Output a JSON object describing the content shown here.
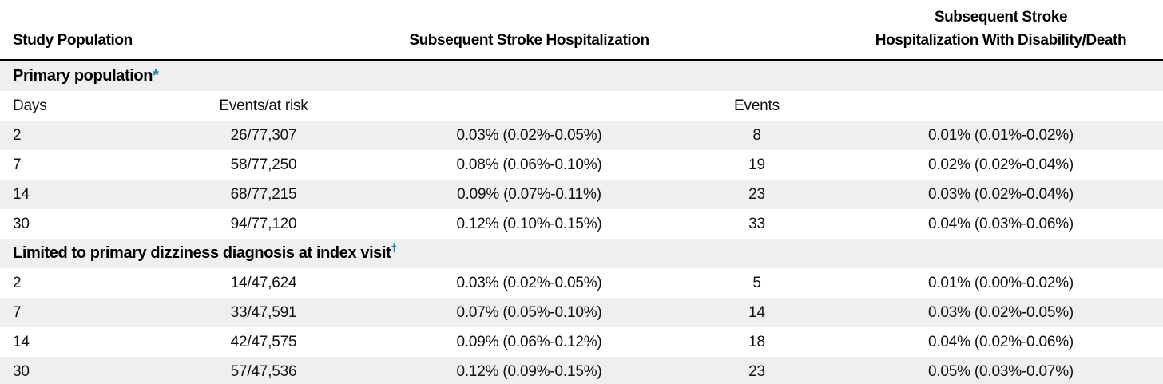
{
  "accent_color": "#1b7fb5",
  "stripe_color": "#efefef",
  "header": {
    "study_population": "Study Population",
    "stroke_hospitalization": "Subsequent Stroke Hospitalization",
    "stroke_disability_line1": "Subsequent Stroke",
    "stroke_disability_line2": "Hospitalization With Disability/Death"
  },
  "subheader": {
    "days": "Days",
    "events_at_risk": "Events/at risk",
    "events": "Events"
  },
  "sections": [
    {
      "title": "Primary population",
      "marker": "*",
      "rows": [
        {
          "days": "2",
          "events_at_risk": "26/77,307",
          "rate_ci": "0.03% (0.02%-0.05%)",
          "events": "8",
          "disability_rate_ci": "0.01% (0.01%-0.02%)"
        },
        {
          "days": "7",
          "events_at_risk": "58/77,250",
          "rate_ci": "0.08% (0.06%-0.10%)",
          "events": "19",
          "disability_rate_ci": "0.02% (0.02%-0.04%)"
        },
        {
          "days": "14",
          "events_at_risk": "68/77,215",
          "rate_ci": "0.09% (0.07%-0.11%)",
          "events": "23",
          "disability_rate_ci": "0.03% (0.02%-0.04%)"
        },
        {
          "days": "30",
          "events_at_risk": "94/77,120",
          "rate_ci": "0.12% (0.10%-0.15%)",
          "events": "33",
          "disability_rate_ci": "0.04% (0.03%-0.06%)"
        }
      ]
    },
    {
      "title": "Limited to primary dizziness diagnosis at index visit",
      "marker": "†",
      "rows": [
        {
          "days": "2",
          "events_at_risk": "14/47,624",
          "rate_ci": "0.03% (0.02%-0.05%)",
          "events": "5",
          "disability_rate_ci": "0.01% (0.00%-0.02%)"
        },
        {
          "days": "7",
          "events_at_risk": "33/47,591",
          "rate_ci": "0.07% (0.05%-0.10%)",
          "events": "14",
          "disability_rate_ci": "0.03% (0.02%-0.05%)"
        },
        {
          "days": "14",
          "events_at_risk": "42/47,575",
          "rate_ci": "0.09% (0.06%-0.12%)",
          "events": "18",
          "disability_rate_ci": "0.04% (0.02%-0.06%)"
        },
        {
          "days": "30",
          "events_at_risk": "57/47,536",
          "rate_ci": "0.12% (0.09%-0.15%)",
          "events": "23",
          "disability_rate_ci": "0.05% (0.03%-0.07%)"
        }
      ]
    }
  ]
}
